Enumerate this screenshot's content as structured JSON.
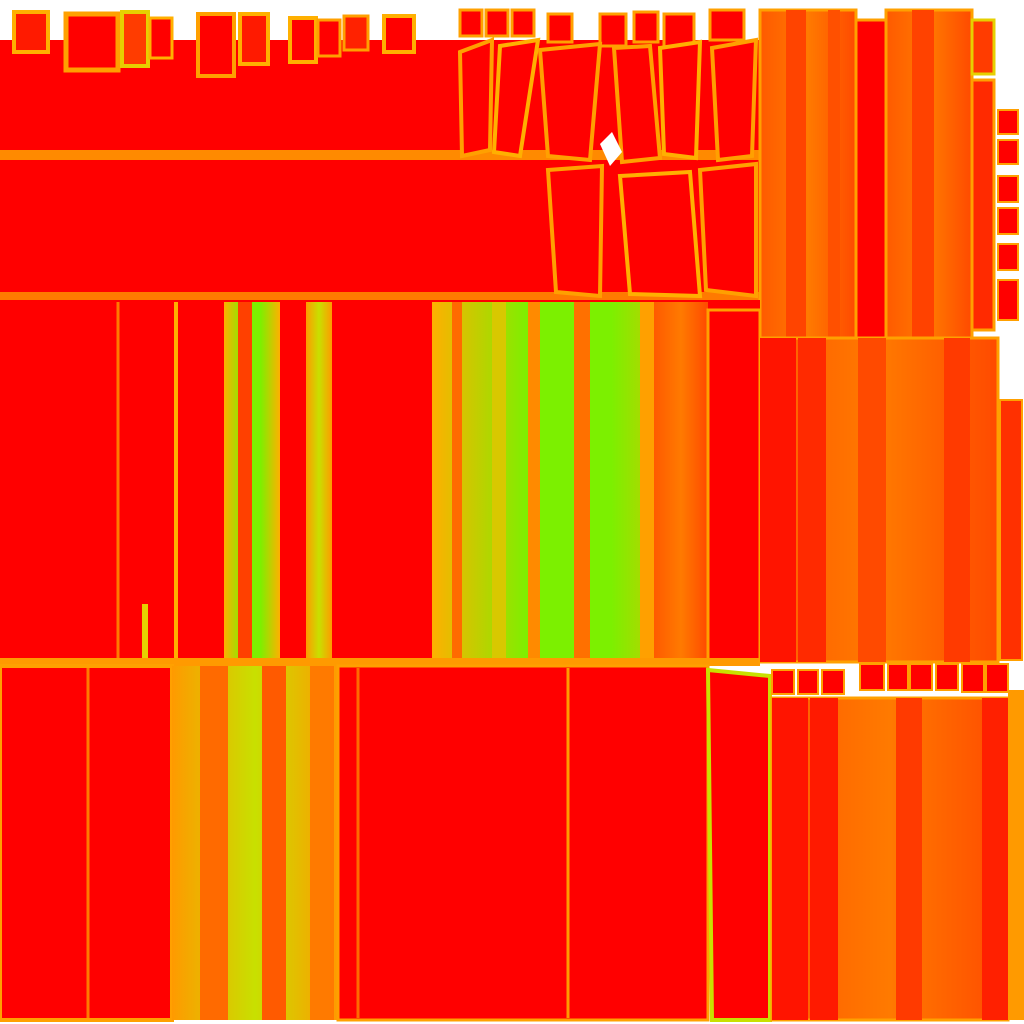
{
  "image": {
    "kind": "uv-texture-heatmap",
    "text_visible": false
  },
  "palette": {
    "background": "#ffffff",
    "red": "#ff0000",
    "orange_red": "#ff3c00",
    "orange": "#ff6e00",
    "amber": "#ffa000",
    "yellow": "#ffd200",
    "yellow_green": "#b4e600",
    "green": "#78ff00"
  },
  "legend": []
}
